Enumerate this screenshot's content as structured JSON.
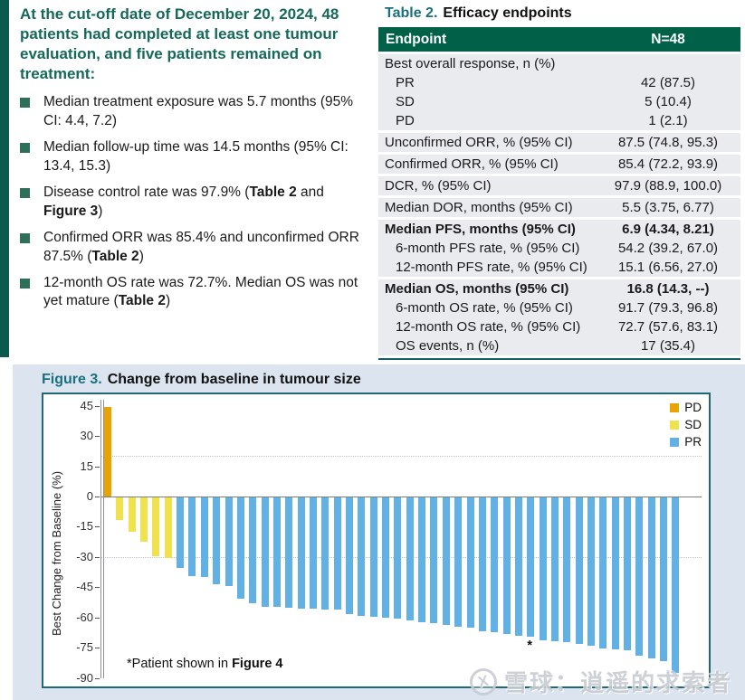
{
  "summary": {
    "heading": "At the cut-off date of December 20, 2024, 48 patients had completed at least one tumour evaluation, and five patients remained on treatment:",
    "bullets": [
      {
        "segments": [
          {
            "t": "Median treatment exposure was 5.7 months (95% CI: 4.4, 7.2)"
          }
        ]
      },
      {
        "segments": [
          {
            "t": "Median follow-up time was 14.5 months (95% CI: 13.4, 15.3)"
          }
        ]
      },
      {
        "segments": [
          {
            "t": "Disease control rate was 97.9% ("
          },
          {
            "t": "Table 2",
            "b": true
          },
          {
            "t": " and "
          },
          {
            "t": "Figure 3",
            "b": true
          },
          {
            "t": ")"
          }
        ]
      },
      {
        "segments": [
          {
            "t": "Confirmed ORR was 85.4% and unconfirmed ORR 87.5% ("
          },
          {
            "t": "Table 2",
            "b": true
          },
          {
            "t": ")"
          }
        ]
      },
      {
        "segments": [
          {
            "t": "12-month OS rate was 72.7%. Median OS was not yet mature ("
          },
          {
            "t": "Table 2",
            "b": true
          },
          {
            "t": ")"
          }
        ]
      }
    ]
  },
  "table": {
    "title_label": "Table 2.",
    "title_text": "Efficacy endpoints",
    "header": {
      "endpoint": "Endpoint",
      "n": "N=48"
    },
    "header_bg": "#006149",
    "groups": [
      {
        "rows": [
          {
            "label": "Best overall response, n (%)",
            "value": ""
          },
          {
            "label": "PR",
            "value": "42 (87.5)",
            "indent": true
          },
          {
            "label": "SD",
            "value": "5 (10.4)",
            "indent": true
          },
          {
            "label": "PD",
            "value": "1 (2.1)",
            "indent": true
          }
        ]
      },
      {
        "rows": [
          {
            "label": "Unconfirmed ORR, % (95% CI)",
            "value": "87.5 (74.8, 95.3)"
          }
        ]
      },
      {
        "rows": [
          {
            "label": "Confirmed ORR, % (95% CI)",
            "value": "85.4 (72.2, 93.9)"
          }
        ]
      },
      {
        "rows": [
          {
            "label": "DCR, % (95% CI)",
            "value": "97.9 (88.9, 100.0)"
          }
        ]
      },
      {
        "rows": [
          {
            "label": "Median DOR, months (95% CI)",
            "value": "5.5 (3.75, 6.77)"
          }
        ]
      },
      {
        "rows": [
          {
            "label": "Median PFS, months (95% CI)",
            "value": "6.9 (4.34, 8.21)",
            "bold": true
          },
          {
            "label": "6-month PFS rate, % (95% CI)",
            "value": "54.2 (39.2, 67.0)",
            "indent": true
          },
          {
            "label": "12-month PFS rate, % (95% CI)",
            "value": "15.1 (6.56, 27.0)",
            "indent": true
          }
        ]
      },
      {
        "rows": [
          {
            "label": "Median OS, months (95% CI)",
            "value": "16.8 (14.3, --)",
            "bold": true
          },
          {
            "label": "6-month OS rate, % (95% CI)",
            "value": "91.7 (79.3, 96.8)",
            "indent": true
          },
          {
            "label": "12-month OS rate, % (95% CI)",
            "value": "72.7 (57.6, 83.1)",
            "indent": true
          },
          {
            "label": "OS events, n (%)",
            "value": "17 (35.4)",
            "indent": true
          }
        ]
      }
    ]
  },
  "figure": {
    "title_label": "Figure 3.",
    "title_text": "Change from baseline in tumour size",
    "note_segments": [
      {
        "t": "*Patient shown in "
      },
      {
        "t": "Figure 4",
        "b": true
      }
    ],
    "legend": [
      {
        "label": "PD",
        "color": "#e8a303"
      },
      {
        "label": "SD",
        "color": "#f0e24d"
      },
      {
        "label": "PR",
        "color": "#62b1e5"
      }
    ]
  },
  "chart_data": {
    "type": "bar",
    "title": "Change from baseline in tumour size",
    "xlabel": "",
    "ylabel": "Best Change from Baseline (%)",
    "ylim": [
      -90,
      45
    ],
    "yticks": [
      45,
      30,
      15,
      0,
      -15,
      -30,
      -45,
      -60,
      -75,
      -90
    ],
    "reference_lines": [
      20,
      -30
    ],
    "grid": false,
    "legend_position": "top-right",
    "n_patients": 48,
    "series": [
      {
        "name": "PD",
        "color": "#e8a303",
        "values": [
          44.5
        ]
      },
      {
        "name": "SD",
        "color": "#f0e24d",
        "values": [
          -11,
          -17,
          -22,
          -29,
          -30
        ]
      },
      {
        "name": "PR",
        "color": "#62b1e5",
        "values": [
          -35,
          -39,
          -39.5,
          -43,
          -44,
          -50,
          -52.5,
          -54,
          -54.2,
          -54.5,
          -55,
          -55,
          -55.3,
          -55.5,
          -57.9,
          -58.7,
          -59,
          -59.4,
          -60.1,
          -60.9,
          -61.6,
          -62.4,
          -63.1,
          -63.9,
          -64.6,
          -66.1,
          -66.9,
          -67.6,
          -68.4,
          -69.1,
          -70.6,
          -71.3,
          -71.8,
          -72.4,
          -73.6,
          -74.8,
          -75.1,
          -75.8,
          -78.4,
          -79.6,
          -81.1,
          -87
        ]
      }
    ],
    "starred_bar_index": 35,
    "star_symbol": "*"
  },
  "watermark": {
    "text": "雪球：逍遥的求索者",
    "symbol": "X"
  },
  "colors": {
    "accent_teal_dark": "#0a5a4e",
    "heading_green": "#15695a",
    "label_teal": "#19707f",
    "table_header_green": "#006149",
    "row_gray": "#e9ebef",
    "figure_bg": "#dbe4ef",
    "panel_border": "#216877"
  }
}
